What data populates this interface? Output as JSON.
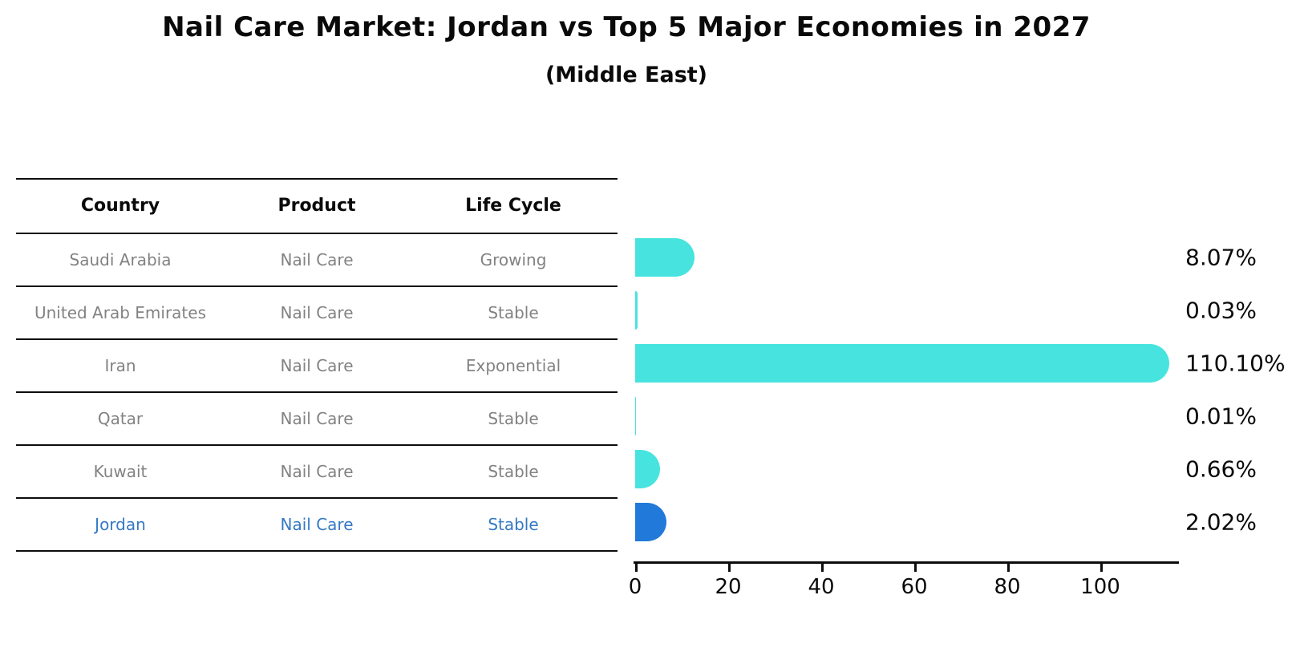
{
  "title": "Nail Care Market: Jordan vs Top 5 Major Economies in 2027",
  "subtitle": "(Middle East)",
  "table": {
    "headers": [
      "Country",
      "Product",
      "Life Cycle"
    ],
    "rows": [
      {
        "country": "Saudi Arabia",
        "product": "Nail Care",
        "life_cycle": "Growing",
        "highlight": false
      },
      {
        "country": "United Arab Emirates",
        "product": "Nail Care",
        "life_cycle": "Stable",
        "highlight": false
      },
      {
        "country": "Iran",
        "product": "Nail Care",
        "life_cycle": "Exponential",
        "highlight": false
      },
      {
        "country": "Qatar",
        "product": "Nail Care",
        "life_cycle": "Stable",
        "highlight": false
      },
      {
        "country": "Kuwait",
        "product": "Nail Care",
        "life_cycle": "Stable",
        "highlight": false
      },
      {
        "country": "Jordan",
        "product": "Nail Care",
        "life_cycle": "Stable",
        "highlight": true
      }
    ]
  },
  "chart_data": {
    "type": "bar",
    "orientation": "horizontal",
    "title": "Nail Care Market: Jordan vs Top 5 Major Economies in 2027",
    "subtitle": "(Middle East)",
    "categories": [
      "Saudi Arabia",
      "United Arab Emirates",
      "Iran",
      "Qatar",
      "Kuwait",
      "Jordan"
    ],
    "values": [
      8.07,
      0.03,
      110.1,
      0.01,
      0.66,
      2.02
    ],
    "value_labels": [
      "8.07%",
      "0.03%",
      "110.10%",
      "0.01%",
      "0.66%",
      "2.02%"
    ],
    "x_ticks": [
      0,
      20,
      40,
      60,
      80,
      100
    ],
    "xlim": [
      0,
      116
    ],
    "grid": false,
    "legend": "none",
    "highlight_index": 5,
    "bar_color": "#47E4DF",
    "highlight_color": "#217AD9"
  },
  "colors": {
    "bar_cyan": "#47E4DF",
    "bar_blue": "#217AD9",
    "highlight_text": "#3579C4",
    "row_text": "#828282",
    "header_text": "#0a0a0a",
    "line": "#0d0d0d"
  }
}
